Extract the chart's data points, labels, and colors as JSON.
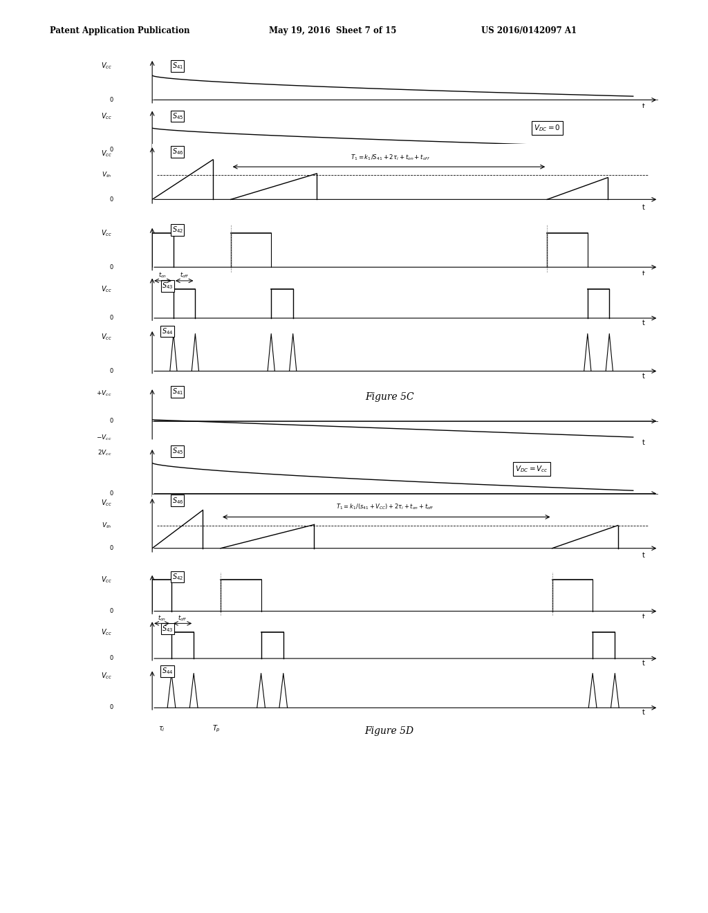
{
  "bg_color": "#ffffff",
  "header_left": "Patent Application Publication",
  "header_mid": "May 19, 2016  Sheet 7 of 15",
  "header_right": "US 2016/0142097 A1",
  "fig5c_label": "Figure 5C",
  "fig5d_label": "Figure 5D"
}
